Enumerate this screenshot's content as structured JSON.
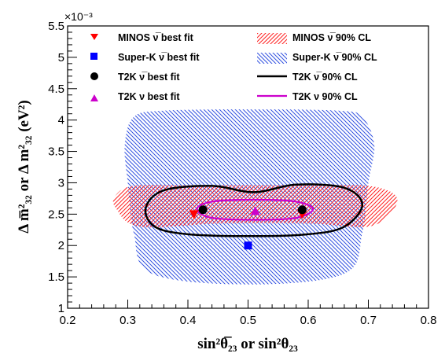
{
  "chart_data": {
    "type": "scatter",
    "xlabel": "sin²θ̅₂₃ or sin²θ₂₃",
    "ylabel": "Δ m̅²₃₂ or Δ m²₃₂ (eV²)",
    "y_multiplier": "×10⁻³",
    "xlim": [
      0.2,
      0.8
    ],
    "ylim": [
      1.0,
      5.5
    ],
    "x_ticks": [
      "0.2",
      "0.3",
      "0.4",
      "0.5",
      "0.6",
      "0.7",
      "0.8"
    ],
    "y_ticks": [
      "1",
      "1.5",
      "2",
      "2.5",
      "3",
      "3.5",
      "4",
      "4.5",
      "5",
      "5.5"
    ],
    "legend": [
      "MINOS ν̅ best fit",
      "Super-K ν̅ best fit",
      "T2K ν̅ best fit",
      "T2K ν best fit",
      "MINOS ν̅ 90% CL",
      "Super-K ν̅ 90% CL",
      "T2K ν̅ 90% CL",
      "T2K ν 90% CL"
    ],
    "best_fit_points": [
      {
        "experiment": "MINOS",
        "marker": "triangle-down",
        "color": "#ff0000",
        "points": [
          [
            0.41,
            2.5
          ],
          [
            0.59,
            2.5
          ]
        ]
      },
      {
        "experiment": "Super-K",
        "marker": "square",
        "color": "#0000ff",
        "points": [
          [
            0.5,
            2.0
          ]
        ]
      },
      {
        "experiment": "T2K antineutrino",
        "marker": "circle",
        "color": "#000000",
        "points": [
          [
            0.425,
            2.57
          ],
          [
            0.59,
            2.57
          ]
        ]
      },
      {
        "experiment": "T2K neutrino",
        "marker": "triangle-up",
        "color": "#cc00cc",
        "points": [
          [
            0.512,
            2.55
          ]
        ]
      }
    ],
    "regions": {
      "minos_90cl": {
        "color": "#ff0000",
        "outline": [
          [
            0.28,
            2.8
          ],
          [
            0.31,
            2.95
          ],
          [
            0.4,
            2.96
          ],
          [
            0.6,
            2.96
          ],
          [
            0.7,
            2.95
          ],
          [
            0.745,
            2.8
          ],
          [
            0.74,
            2.55
          ],
          [
            0.7,
            2.3
          ],
          [
            0.6,
            2.35
          ],
          [
            0.45,
            2.35
          ],
          [
            0.32,
            2.3
          ],
          [
            0.28,
            2.6
          ]
        ]
      },
      "superk_90cl": {
        "color": "#0000ff",
        "outline": [
          [
            0.31,
            4.05
          ],
          [
            0.36,
            4.15
          ],
          [
            0.5,
            4.17
          ],
          [
            0.65,
            4.15
          ],
          [
            0.69,
            4.05
          ],
          [
            0.71,
            3.6
          ],
          [
            0.7,
            3.0
          ],
          [
            0.69,
            2.2
          ],
          [
            0.66,
            1.55
          ],
          [
            0.5,
            1.38
          ],
          [
            0.34,
            1.55
          ],
          [
            0.31,
            2.2
          ],
          [
            0.3,
            3.0
          ],
          [
            0.295,
            3.6
          ]
        ]
      },
      "t2k_antineutrino_90cl": {
        "color": "#000000",
        "outline": [
          [
            0.33,
            2.6
          ],
          [
            0.36,
            2.88
          ],
          [
            0.44,
            2.95
          ],
          [
            0.51,
            2.85
          ],
          [
            0.58,
            2.97
          ],
          [
            0.66,
            2.92
          ],
          [
            0.69,
            2.65
          ],
          [
            0.66,
            2.3
          ],
          [
            0.6,
            2.18
          ],
          [
            0.5,
            2.15
          ],
          [
            0.4,
            2.18
          ],
          [
            0.345,
            2.3
          ]
        ]
      },
      "t2k_neutrino_90cl": {
        "color": "#cc00cc",
        "outline": [
          [
            0.415,
            2.58
          ],
          [
            0.44,
            2.7
          ],
          [
            0.512,
            2.73
          ],
          [
            0.58,
            2.7
          ],
          [
            0.608,
            2.58
          ],
          [
            0.58,
            2.44
          ],
          [
            0.512,
            2.41
          ],
          [
            0.44,
            2.44
          ]
        ]
      }
    }
  }
}
